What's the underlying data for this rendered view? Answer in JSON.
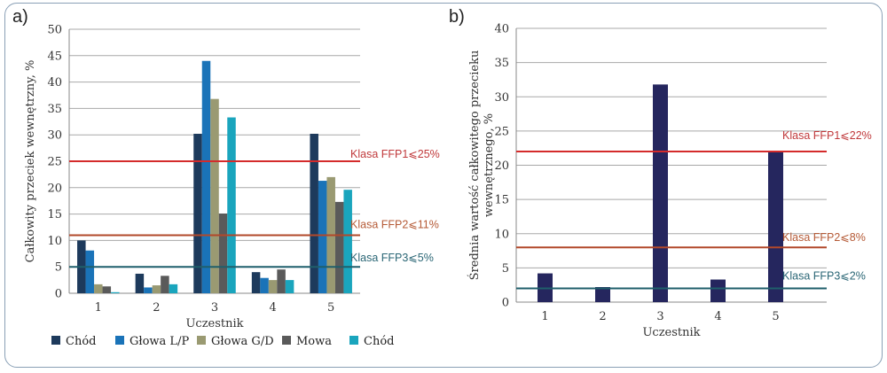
{
  "panels": {
    "a": "a)",
    "b": "b)"
  },
  "chart_data": [
    {
      "type": "bar",
      "categories": [
        "1",
        "2",
        "3",
        "4",
        "5"
      ],
      "series": [
        {
          "name": "Chód",
          "color": "#1d3a5c",
          "values": [
            10,
            3.7,
            30.2,
            4.0,
            30.2
          ]
        },
        {
          "name": "Głowa L/P",
          "color": "#1a73b8",
          "values": [
            8.1,
            1.1,
            44,
            2.9,
            21.3
          ]
        },
        {
          "name": "Głowa G/D",
          "color": "#9a9a72",
          "values": [
            1.7,
            1.5,
            36.8,
            2.5,
            22
          ]
        },
        {
          "name": "Mowa",
          "color": "#5a5a5a",
          "values": [
            1.3,
            3.3,
            15.1,
            4.5,
            17.3
          ]
        },
        {
          "name": "Chód",
          "color": "#1aa5bd",
          "values": [
            0.2,
            1.7,
            33.3,
            2.5,
            19.6
          ]
        }
      ],
      "xlabel": "Uczestnik",
      "ylabel": "Całkowity przeciek wewnętrzny, %",
      "ylim": [
        0,
        50
      ],
      "yticks": [
        "0",
        "5",
        "10",
        "15",
        "20",
        "25",
        "30",
        "35",
        "40",
        "45",
        "50"
      ],
      "grid": true,
      "legend": "bottom",
      "thresholds": [
        {
          "label": "Klasa FFP1⩽25%",
          "value": 25,
          "color": "#d42b2b",
          "text_color": "#c0393b"
        },
        {
          "label": "Klasa FFP2⩽11%",
          "value": 11,
          "color": "#b2482a",
          "text_color": "#b55a36"
        },
        {
          "label": "Klasa FFP3⩽5%",
          "value": 5,
          "color": "#1f5f6b",
          "text_color": "#2a6675"
        }
      ]
    },
    {
      "type": "bar",
      "categories": [
        "1",
        "2",
        "3",
        "4",
        "5"
      ],
      "series": [
        {
          "color": "#25265e",
          "values": [
            4.2,
            2.2,
            31.8,
            3.3,
            22
          ]
        }
      ],
      "xlabel": "Uczestnik",
      "ylabel": "Średnia wartość całkowitego przecieku wewnętrznego, %",
      "ylim": [
        0,
        40
      ],
      "yticks": [
        "0",
        "5",
        "10",
        "15",
        "20",
        "25",
        "30",
        "35",
        "40"
      ],
      "grid": true,
      "thresholds": [
        {
          "label": "Klasa FFP1⩽22%",
          "value": 22,
          "color": "#d42b2b",
          "text_color": "#c0393b"
        },
        {
          "label": "Klasa FFP2⩽8%",
          "value": 8,
          "color": "#b2482a",
          "text_color": "#b55a36"
        },
        {
          "label": "Klasa FFP3⩽2%",
          "value": 2,
          "color": "#1f5f6b",
          "text_color": "#2a6675"
        }
      ]
    }
  ]
}
